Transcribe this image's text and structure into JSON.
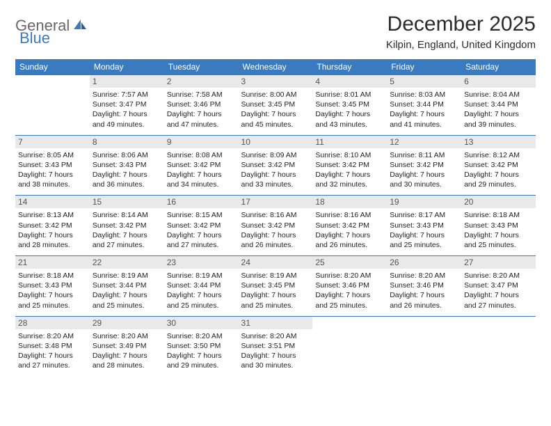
{
  "logo": {
    "word1": "General",
    "word2": "Blue"
  },
  "colors": {
    "brand": "#3a7bbf",
    "header_text": "#686868",
    "daynum_bg": "#e9e9e9",
    "text": "#222222",
    "bg": "#ffffff"
  },
  "title": "December 2025",
  "location": "Kilpin, England, United Kingdom",
  "weekdays": [
    "Sunday",
    "Monday",
    "Tuesday",
    "Wednesday",
    "Thursday",
    "Friday",
    "Saturday"
  ],
  "days": {
    "1": {
      "sunrise": "7:57 AM",
      "sunset": "3:47 PM",
      "daylight": "7 hours and 49 minutes."
    },
    "2": {
      "sunrise": "7:58 AM",
      "sunset": "3:46 PM",
      "daylight": "7 hours and 47 minutes."
    },
    "3": {
      "sunrise": "8:00 AM",
      "sunset": "3:45 PM",
      "daylight": "7 hours and 45 minutes."
    },
    "4": {
      "sunrise": "8:01 AM",
      "sunset": "3:45 PM",
      "daylight": "7 hours and 43 minutes."
    },
    "5": {
      "sunrise": "8:03 AM",
      "sunset": "3:44 PM",
      "daylight": "7 hours and 41 minutes."
    },
    "6": {
      "sunrise": "8:04 AM",
      "sunset": "3:44 PM",
      "daylight": "7 hours and 39 minutes."
    },
    "7": {
      "sunrise": "8:05 AM",
      "sunset": "3:43 PM",
      "daylight": "7 hours and 38 minutes."
    },
    "8": {
      "sunrise": "8:06 AM",
      "sunset": "3:43 PM",
      "daylight": "7 hours and 36 minutes."
    },
    "9": {
      "sunrise": "8:08 AM",
      "sunset": "3:42 PM",
      "daylight": "7 hours and 34 minutes."
    },
    "10": {
      "sunrise": "8:09 AM",
      "sunset": "3:42 PM",
      "daylight": "7 hours and 33 minutes."
    },
    "11": {
      "sunrise": "8:10 AM",
      "sunset": "3:42 PM",
      "daylight": "7 hours and 32 minutes."
    },
    "12": {
      "sunrise": "8:11 AM",
      "sunset": "3:42 PM",
      "daylight": "7 hours and 30 minutes."
    },
    "13": {
      "sunrise": "8:12 AM",
      "sunset": "3:42 PM",
      "daylight": "7 hours and 29 minutes."
    },
    "14": {
      "sunrise": "8:13 AM",
      "sunset": "3:42 PM",
      "daylight": "7 hours and 28 minutes."
    },
    "15": {
      "sunrise": "8:14 AM",
      "sunset": "3:42 PM",
      "daylight": "7 hours and 27 minutes."
    },
    "16": {
      "sunrise": "8:15 AM",
      "sunset": "3:42 PM",
      "daylight": "7 hours and 27 minutes."
    },
    "17": {
      "sunrise": "8:16 AM",
      "sunset": "3:42 PM",
      "daylight": "7 hours and 26 minutes."
    },
    "18": {
      "sunrise": "8:16 AM",
      "sunset": "3:42 PM",
      "daylight": "7 hours and 26 minutes."
    },
    "19": {
      "sunrise": "8:17 AM",
      "sunset": "3:43 PM",
      "daylight": "7 hours and 25 minutes."
    },
    "20": {
      "sunrise": "8:18 AM",
      "sunset": "3:43 PM",
      "daylight": "7 hours and 25 minutes."
    },
    "21": {
      "sunrise": "8:18 AM",
      "sunset": "3:43 PM",
      "daylight": "7 hours and 25 minutes."
    },
    "22": {
      "sunrise": "8:19 AM",
      "sunset": "3:44 PM",
      "daylight": "7 hours and 25 minutes."
    },
    "23": {
      "sunrise": "8:19 AM",
      "sunset": "3:44 PM",
      "daylight": "7 hours and 25 minutes."
    },
    "24": {
      "sunrise": "8:19 AM",
      "sunset": "3:45 PM",
      "daylight": "7 hours and 25 minutes."
    },
    "25": {
      "sunrise": "8:20 AM",
      "sunset": "3:46 PM",
      "daylight": "7 hours and 25 minutes."
    },
    "26": {
      "sunrise": "8:20 AM",
      "sunset": "3:46 PM",
      "daylight": "7 hours and 26 minutes."
    },
    "27": {
      "sunrise": "8:20 AM",
      "sunset": "3:47 PM",
      "daylight": "7 hours and 27 minutes."
    },
    "28": {
      "sunrise": "8:20 AM",
      "sunset": "3:48 PM",
      "daylight": "7 hours and 27 minutes."
    },
    "29": {
      "sunrise": "8:20 AM",
      "sunset": "3:49 PM",
      "daylight": "7 hours and 28 minutes."
    },
    "30": {
      "sunrise": "8:20 AM",
      "sunset": "3:50 PM",
      "daylight": "7 hours and 29 minutes."
    },
    "31": {
      "sunrise": "8:20 AM",
      "sunset": "3:51 PM",
      "daylight": "7 hours and 30 minutes."
    }
  },
  "grid": [
    [
      null,
      1,
      2,
      3,
      4,
      5,
      6
    ],
    [
      7,
      8,
      9,
      10,
      11,
      12,
      13
    ],
    [
      14,
      15,
      16,
      17,
      18,
      19,
      20
    ],
    [
      21,
      22,
      23,
      24,
      25,
      26,
      27
    ],
    [
      28,
      29,
      30,
      31,
      null,
      null,
      null
    ]
  ],
  "labels": {
    "sunrise": "Sunrise: ",
    "sunset": "Sunset: ",
    "daylight": "Daylight: "
  }
}
